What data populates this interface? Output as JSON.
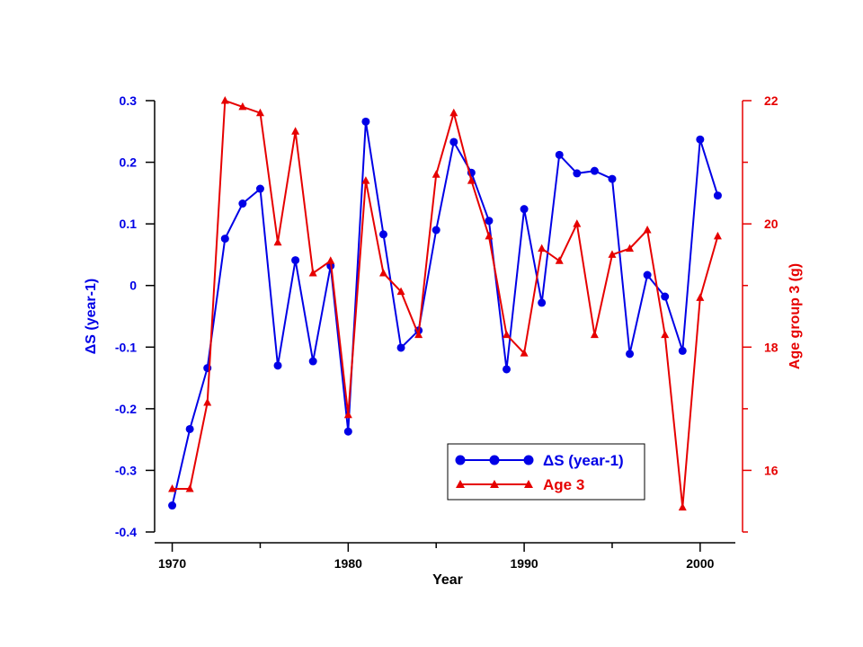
{
  "chart_data": {
    "type": "line",
    "xlabel": "Year",
    "ylabel_left": "ΔS (year-1)",
    "ylabel_right": "Age group 3 (g)",
    "xlim": [
      1969,
      2002
    ],
    "ylim_left": [
      -0.4,
      0.3
    ],
    "ylim_right": [
      15,
      22
    ],
    "x_ticks": [
      1970,
      1980,
      1990,
      2000
    ],
    "x_tick_labels": [
      "1970",
      "1980",
      "1990",
      "2000"
    ],
    "y_left_ticks": [
      -0.4,
      -0.3,
      -0.2,
      -0.1,
      0,
      0.1,
      0.2,
      0.3
    ],
    "y_left_tick_labels": [
      "-0.4",
      "-0.3",
      "-0.2",
      "-0.1",
      "0",
      "0.1",
      "0.2",
      "0.3"
    ],
    "y_right_ticks": [
      16,
      18,
      20,
      22
    ],
    "y_right_tick_labels": [
      "16",
      "18",
      "20",
      "22"
    ],
    "grid": false,
    "legend_position": "bottom-right",
    "series": [
      {
        "name": "ΔS (year-1)",
        "axis": "left",
        "color": "#0000e6",
        "marker": "circle",
        "x": [
          1970,
          1971,
          1972,
          1973,
          1974,
          1975,
          1976,
          1977,
          1978,
          1979,
          1980,
          1981,
          1982,
          1983,
          1984,
          1985,
          1986,
          1987,
          1988,
          1989,
          1990,
          1991,
          1992,
          1993,
          1994,
          1995,
          1996,
          1997,
          1998,
          1999,
          2000,
          2001
        ],
        "values": [
          -0.357,
          -0.233,
          -0.134,
          0.076,
          0.133,
          0.157,
          -0.13,
          0.041,
          -0.123,
          0.032,
          -0.237,
          0.266,
          0.083,
          -0.101,
          -0.073,
          0.09,
          0.233,
          0.183,
          0.105,
          -0.136,
          0.124,
          -0.028,
          0.212,
          0.182,
          0.186,
          0.173,
          -0.111,
          0.017,
          -0.018,
          -0.106,
          0.237,
          0.146
        ]
      },
      {
        "name": "Age 3",
        "axis": "right",
        "color": "#e60000",
        "marker": "triangle",
        "x": [
          1970,
          1971,
          1972,
          1973,
          1974,
          1975,
          1976,
          1977,
          1978,
          1979,
          1980,
          1981,
          1982,
          1983,
          1984,
          1985,
          1986,
          1987,
          1988,
          1989,
          1990,
          1991,
          1992,
          1993,
          1994,
          1995,
          1996,
          1997,
          1998,
          1999,
          2000,
          2001
        ],
        "values": [
          15.7,
          15.7,
          17.1,
          22.0,
          21.9,
          21.8,
          19.7,
          21.5,
          19.2,
          19.4,
          16.9,
          20.7,
          19.2,
          18.9,
          18.2,
          20.8,
          21.8,
          20.7,
          19.8,
          18.2,
          17.9,
          19.6,
          19.4,
          20.0,
          18.2,
          19.5,
          19.6,
          19.9,
          18.2,
          15.4,
          18.8,
          19.8
        ]
      }
    ],
    "legend": [
      {
        "label": "ΔS (year-1)",
        "series": 0
      },
      {
        "label": "Age 3",
        "series": 1
      }
    ]
  }
}
